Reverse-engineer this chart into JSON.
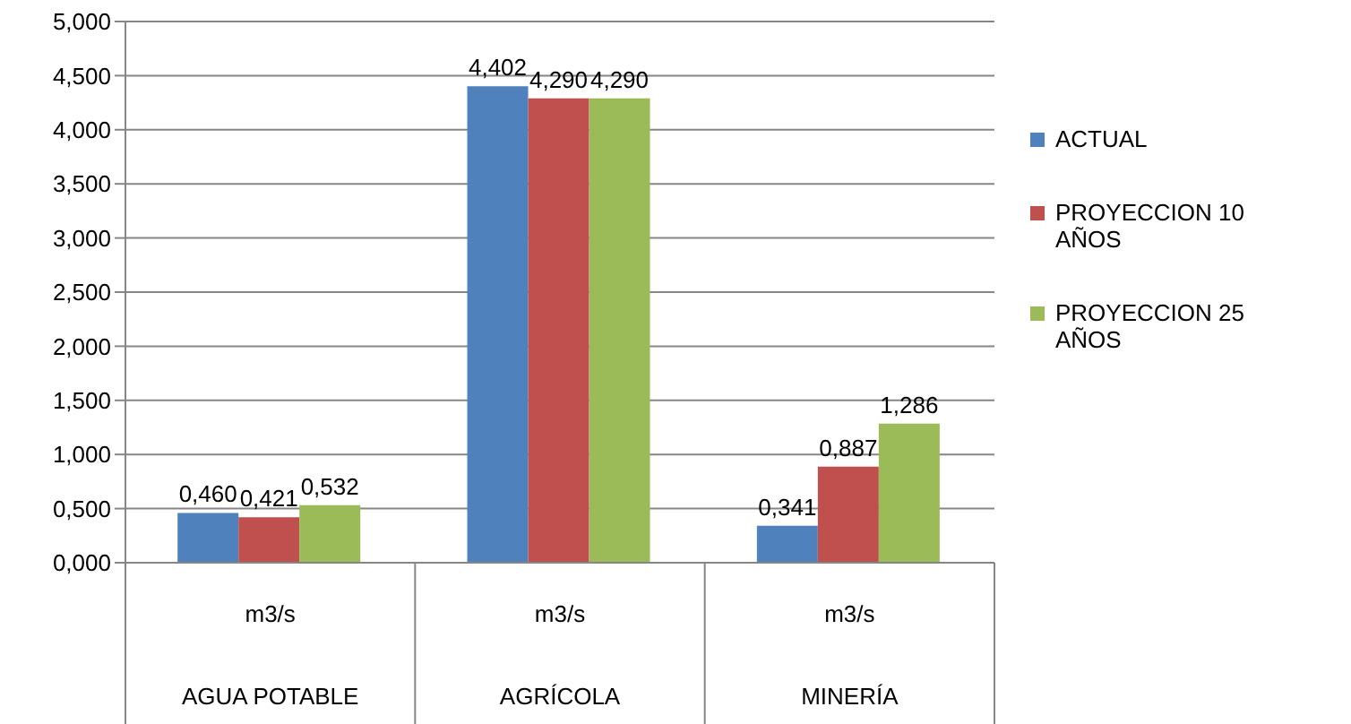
{
  "chart_data": {
    "type": "bar",
    "categories": [
      "m3/s\nAGUA POTABLE",
      "m3/s\nAGRÍCOLA",
      "m3/s\nMINERÍA"
    ],
    "series": [
      {
        "name": "ACTUAL",
        "color": "#4f81bd",
        "values": [
          0.46,
          4.402,
          0.341
        ],
        "value_labels": [
          "0,460",
          "4,402",
          "0,341"
        ]
      },
      {
        "name": "PROYECCION 10 AÑOS",
        "color": "#c0504d",
        "values": [
          0.421,
          4.29,
          0.887
        ],
        "value_labels": [
          "0,421",
          "4,290",
          "0,887"
        ]
      },
      {
        "name": "PROYECCION 25 AÑOS",
        "color": "#9bbb59",
        "values": [
          0.532,
          4.29,
          1.286
        ],
        "value_labels": [
          "0,532",
          "4,290",
          "1,286"
        ]
      }
    ],
    "ylim": [
      0,
      5
    ],
    "yticks": [
      {
        "value": 0,
        "label": "0,000"
      },
      {
        "value": 0.5,
        "label": "0,500"
      },
      {
        "value": 1,
        "label": "1,000"
      },
      {
        "value": 1.5,
        "label": "1,500"
      },
      {
        "value": 2,
        "label": "2,000"
      },
      {
        "value": 2.5,
        "label": "2,500"
      },
      {
        "value": 3,
        "label": "3,000"
      },
      {
        "value": 3.5,
        "label": "3,500"
      },
      {
        "value": 4,
        "label": "4,000"
      },
      {
        "value": 4.5,
        "label": "4,500"
      },
      {
        "value": 5,
        "label": "5,000"
      }
    ],
    "grid": "y",
    "legend": "right"
  }
}
